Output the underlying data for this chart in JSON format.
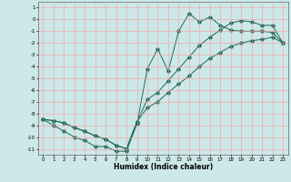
{
  "xlabel": "Humidex (Indice chaleur)",
  "background_color": "#cce8e8",
  "grid_color": "#ff9999",
  "line_color": "#1a6b5a",
  "xlim": [
    -0.5,
    23.5
  ],
  "ylim": [
    -11.5,
    1.5
  ],
  "xticks": [
    0,
    1,
    2,
    3,
    4,
    5,
    6,
    7,
    8,
    9,
    10,
    11,
    12,
    13,
    14,
    15,
    16,
    17,
    18,
    19,
    20,
    21,
    22,
    23
  ],
  "yticks": [
    1,
    0,
    -1,
    -2,
    -3,
    -4,
    -5,
    -6,
    -7,
    -8,
    -9,
    -10,
    -11
  ],
  "curve1_x": [
    0,
    1,
    2,
    3,
    4,
    5,
    6,
    7,
    8,
    9,
    10,
    11,
    12,
    13,
    14,
    15,
    16,
    17,
    18,
    19,
    20,
    21,
    22,
    23
  ],
  "curve1_y": [
    -8.5,
    -9.0,
    -9.5,
    -10.0,
    -10.3,
    -10.8,
    -10.8,
    -11.2,
    -11.2,
    -8.9,
    -4.2,
    -2.5,
    -4.4,
    -1.0,
    0.5,
    -0.2,
    0.2,
    -0.5,
    -0.9,
    -1.0,
    -1.0,
    -1.0,
    -1.1,
    -2.0
  ],
  "curve2_x": [
    0,
    1,
    2,
    3,
    4,
    5,
    6,
    7,
    8,
    9,
    10,
    11,
    12,
    13,
    14,
    15,
    16,
    17,
    18,
    19,
    20,
    21,
    22,
    23
  ],
  "curve2_y": [
    -8.5,
    -8.6,
    -8.8,
    -9.2,
    -9.5,
    -9.9,
    -10.2,
    -10.7,
    -11.0,
    -8.7,
    -7.5,
    -7.0,
    -6.2,
    -5.5,
    -4.8,
    -4.0,
    -3.3,
    -2.8,
    -2.3,
    -2.0,
    -1.8,
    -1.7,
    -1.5,
    -2.0
  ],
  "curve3_x": [
    0,
    1,
    2,
    3,
    4,
    5,
    6,
    7,
    8,
    9,
    10,
    11,
    12,
    13,
    14,
    15,
    16,
    17,
    18,
    19,
    20,
    21,
    22,
    23
  ],
  "curve3_y": [
    -8.5,
    -8.6,
    -8.8,
    -9.2,
    -9.5,
    -9.9,
    -10.2,
    -10.7,
    -11.0,
    -8.7,
    -6.8,
    -6.2,
    -5.2,
    -4.2,
    -3.2,
    -2.2,
    -1.5,
    -0.9,
    -0.3,
    -0.1,
    -0.2,
    -0.5,
    -0.5,
    -2.0
  ]
}
